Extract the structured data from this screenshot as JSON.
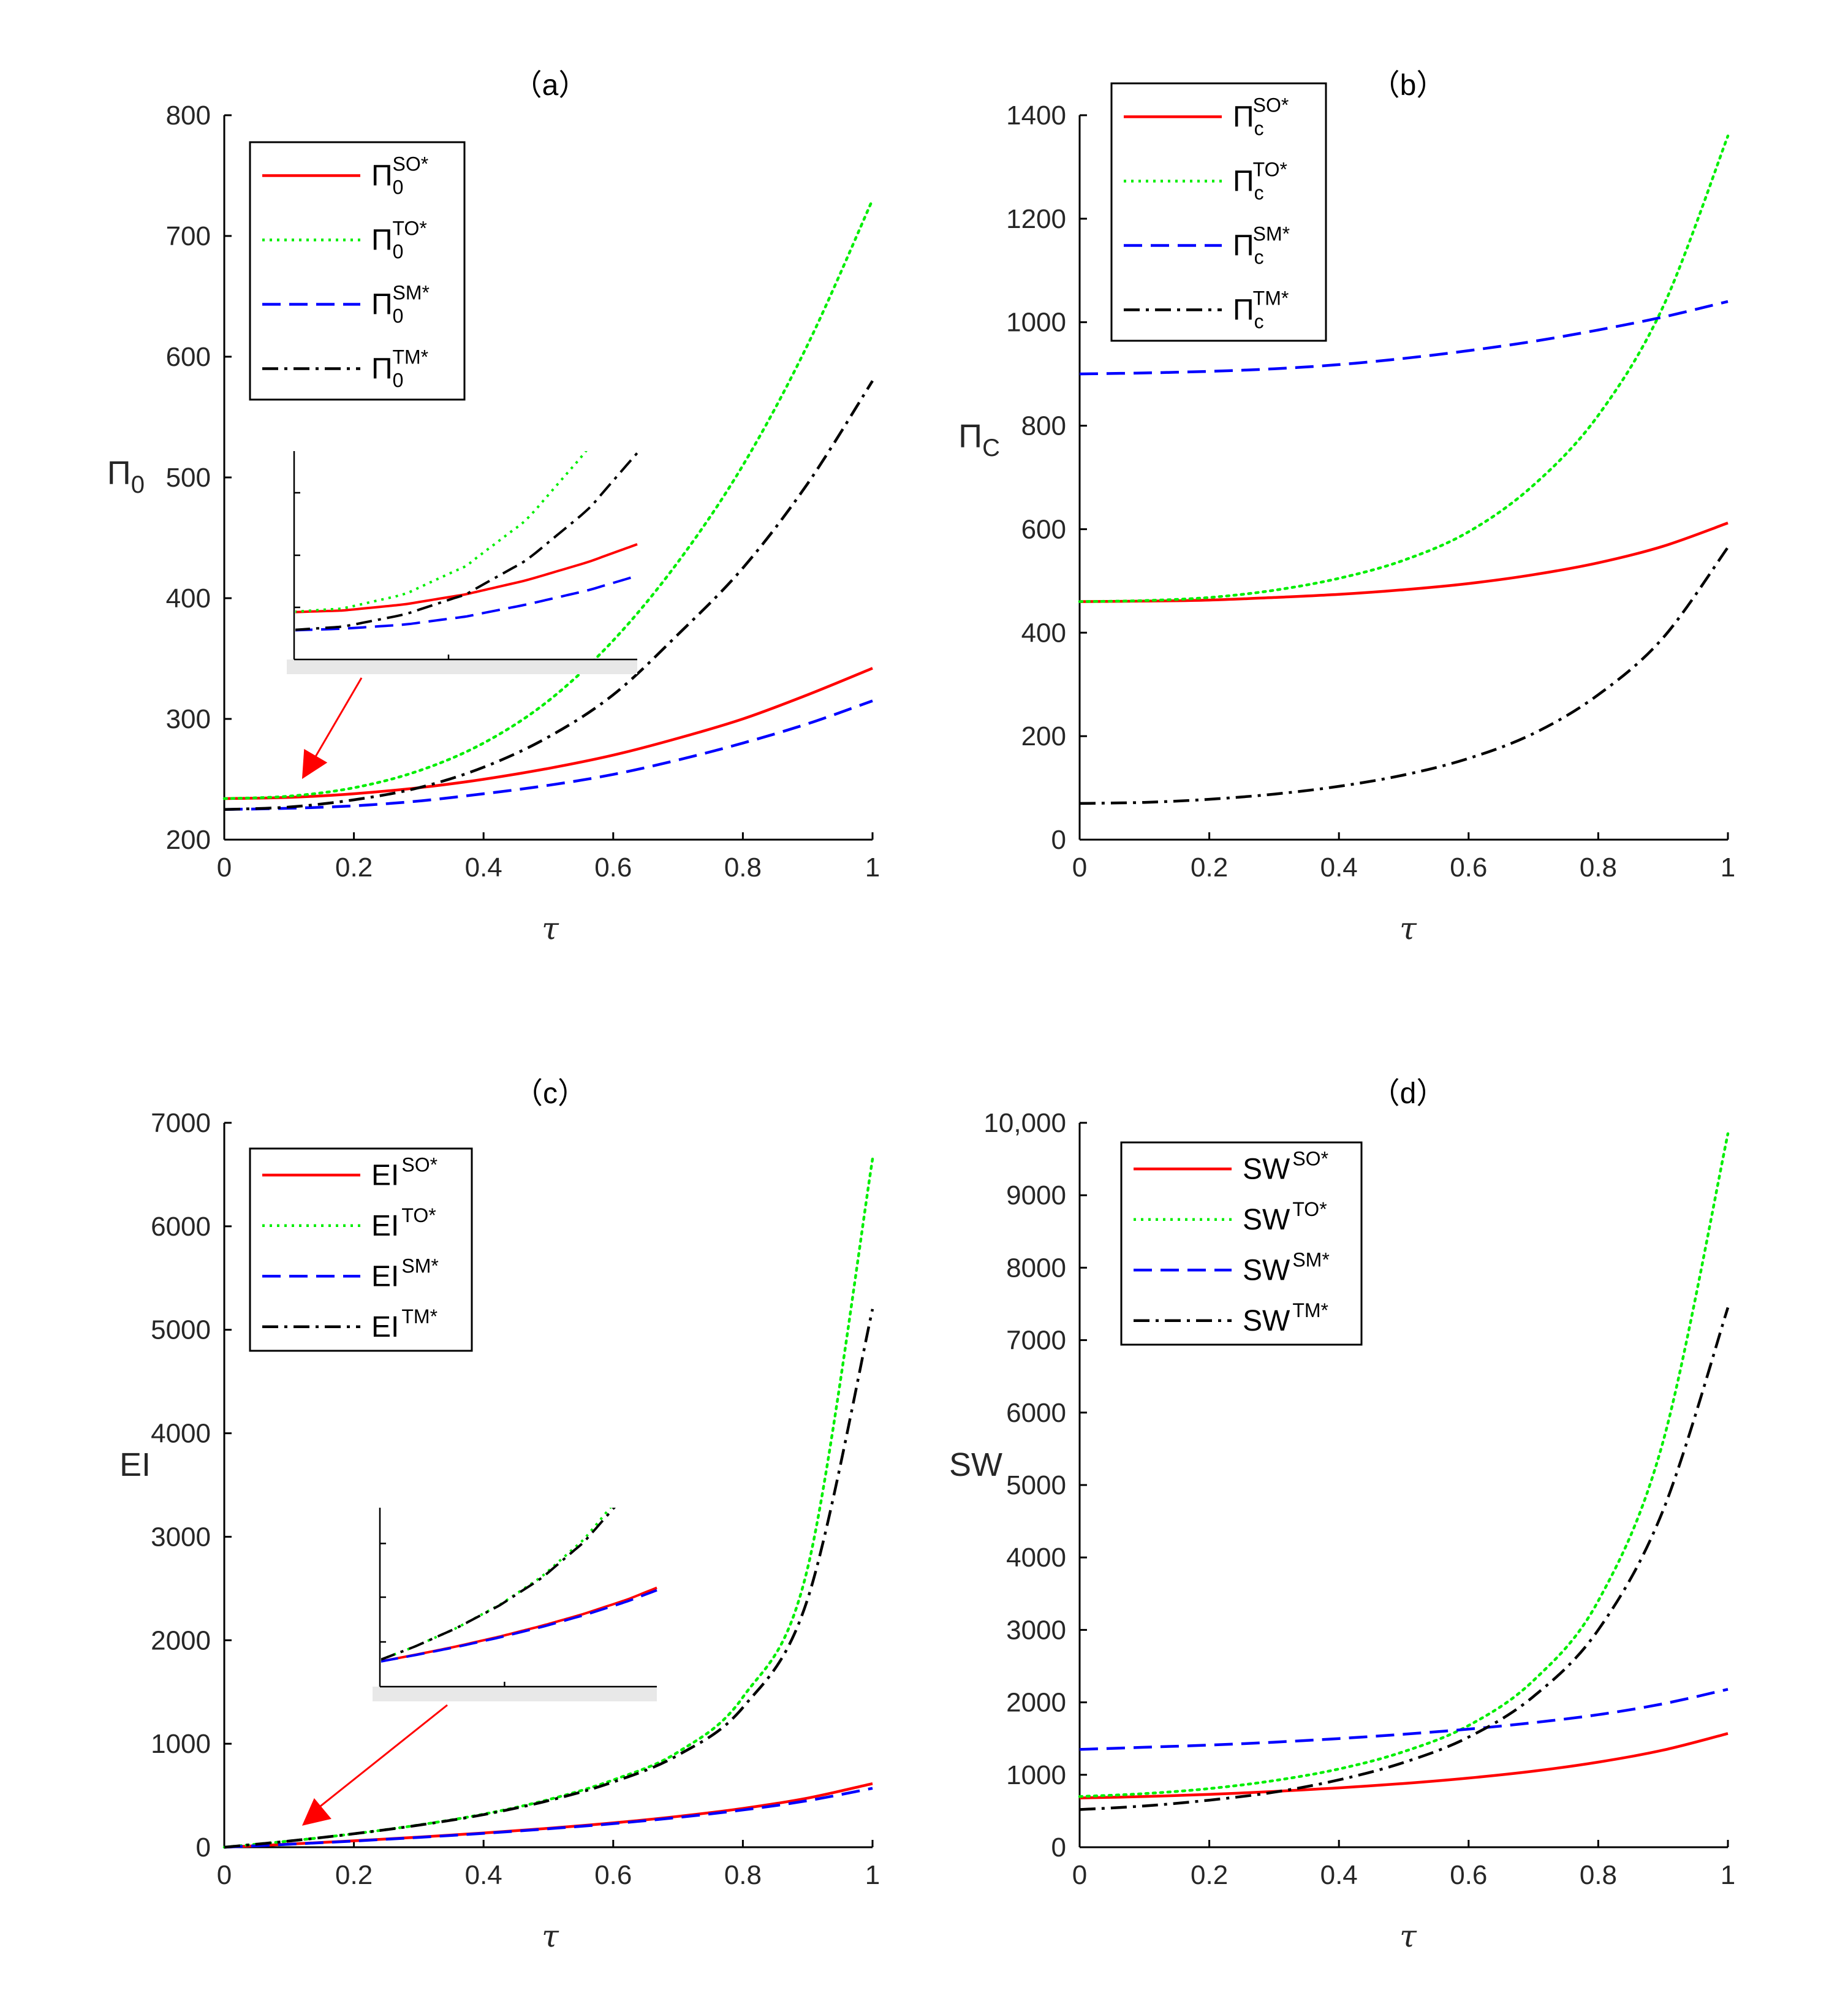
{
  "chart_data": [
    {
      "panel": "(a)",
      "title": "（a）",
      "type": "line",
      "xlabel": "τ",
      "ylabel": "Π",
      "ylabel_sub": "0",
      "xlim": [
        0,
        1
      ],
      "ylim": [
        200,
        800
      ],
      "xticks": [
        "0",
        "0.2",
        "0.4",
        "0.6",
        "0.8",
        "1"
      ],
      "yticks": [
        "200",
        "300",
        "400",
        "500",
        "600",
        "700",
        "800"
      ],
      "legend": "top-left",
      "x": [
        0,
        0.1,
        0.2,
        0.3,
        0.4,
        0.5,
        0.6,
        0.7,
        0.8,
        0.9,
        1.0
      ],
      "series": [
        {
          "name": "Π0SO*",
          "base": "Π",
          "sub": "0",
          "sup": "SO*",
          "color": "#ff0000",
          "style": "solid",
          "values": [
            234,
            235,
            238,
            243,
            250,
            259,
            270,
            284,
            300,
            320,
            342
          ]
        },
        {
          "name": "Π0TO*",
          "base": "Π",
          "sub": "0",
          "sup": "TO*",
          "color": "#00ee00",
          "style": "dotted",
          "values": [
            234,
            236,
            243,
            257,
            280,
            315,
            365,
            430,
            510,
            610,
            730
          ]
        },
        {
          "name": "Π0SM*",
          "base": "Π",
          "sub": "0",
          "sup": "SM*",
          "color": "#0000ff",
          "style": "dashed",
          "values": [
            225,
            226,
            228,
            232,
            238,
            245,
            254,
            266,
            280,
            296,
            315
          ]
        },
        {
          "name": "Π0TM*",
          "base": "Π",
          "sub": "0",
          "sup": "TM*",
          "color": "#000000",
          "style": "dashdot",
          "values": [
            225,
            227,
            233,
            243,
            260,
            285,
            320,
            370,
            425,
            495,
            580
          ]
        }
      ]
    },
    {
      "panel": "(b)",
      "title": "（b）",
      "type": "line",
      "xlabel": "τ",
      "ylabel": "Π",
      "ylabel_sub": "C",
      "xlim": [
        0,
        1
      ],
      "ylim": [
        0,
        1400
      ],
      "xticks": [
        "0",
        "0.2",
        "0.4",
        "0.6",
        "0.8",
        "1"
      ],
      "yticks": [
        "0",
        "200",
        "400",
        "600",
        "800",
        "1000",
        "1200",
        "1400"
      ],
      "legend": "top-left",
      "x": [
        0,
        0.1,
        0.2,
        0.3,
        0.4,
        0.5,
        0.6,
        0.7,
        0.8,
        0.9,
        1.0
      ],
      "series": [
        {
          "name": "ΠcSO*",
          "base": "Π",
          "sub": "c",
          "sup": "SO*",
          "color": "#ff0000",
          "style": "solid",
          "values": [
            460,
            461,
            463,
            468,
            474,
            483,
            495,
            512,
            535,
            567,
            612
          ]
        },
        {
          "name": "ΠcTO*",
          "base": "Π",
          "sub": "c",
          "sup": "TO*",
          "color": "#00ee00",
          "style": "dotted",
          "values": [
            460,
            462,
            468,
            482,
            505,
            540,
            595,
            685,
            820,
            1030,
            1360
          ]
        },
        {
          "name": "ΠcSM*",
          "base": "Π",
          "sub": "c",
          "sup": "SM*",
          "color": "#0000ff",
          "style": "dashed",
          "values": [
            900,
            902,
            905,
            910,
            918,
            930,
            945,
            963,
            985,
            1010,
            1040
          ]
        },
        {
          "name": "ΠcTM*",
          "base": "Π",
          "sub": "c",
          "sup": "TM*",
          "color": "#000000",
          "style": "dashdot",
          "values": [
            70,
            72,
            78,
            88,
            103,
            125,
            157,
            205,
            280,
            390,
            565
          ]
        }
      ]
    },
    {
      "panel": "(c)",
      "title": "（c）",
      "type": "line",
      "xlabel": "τ",
      "ylabel": "EI",
      "ylabel_sub": "",
      "xlim": [
        0,
        1
      ],
      "ylim": [
        0,
        7000
      ],
      "xticks": [
        "0",
        "0.2",
        "0.4",
        "0.6",
        "0.8",
        "1"
      ],
      "yticks": [
        "0",
        "1000",
        "2000",
        "3000",
        "4000",
        "5000",
        "6000",
        "7000"
      ],
      "legend": "top-left",
      "x": [
        0,
        0.1,
        0.2,
        0.3,
        0.4,
        0.5,
        0.6,
        0.7,
        0.8,
        0.9,
        1.0
      ],
      "series": [
        {
          "name": "EISO*",
          "base": "EI",
          "sub": "",
          "sup": "SO*",
          "color": "#ff0000",
          "style": "solid",
          "values": [
            0,
            30,
            62,
            98,
            138,
            183,
            235,
            298,
            375,
            475,
            615
          ]
        },
        {
          "name": "EITO*",
          "base": "EI",
          "sub": "",
          "sup": "TO*",
          "color": "#00ee00",
          "style": "dotted",
          "values": [
            0,
            60,
            130,
            215,
            320,
            460,
            650,
            920,
            1450,
            2700,
            6650
          ]
        },
        {
          "name": "EISM*",
          "base": "EI",
          "sub": "",
          "sup": "SM*",
          "color": "#0000ff",
          "style": "dashed",
          "values": [
            0,
            29,
            60,
            95,
            134,
            178,
            228,
            288,
            360,
            450,
            570
          ]
        },
        {
          "name": "EITM*",
          "base": "EI",
          "sub": "",
          "sup": "TM*",
          "color": "#000000",
          "style": "dashdot",
          "values": [
            0,
            60,
            130,
            213,
            315,
            450,
            630,
            890,
            1350,
            2400,
            5200
          ]
        }
      ]
    },
    {
      "panel": "(d)",
      "title": "（d）",
      "type": "line",
      "xlabel": "τ",
      "ylabel": "SW",
      "ylabel_sub": "",
      "xlim": [
        0,
        1
      ],
      "ylim": [
        0,
        10000
      ],
      "xticks": [
        "0",
        "0.2",
        "0.4",
        "0.6",
        "0.8",
        "1"
      ],
      "yticks": [
        "0",
        "1000",
        "2000",
        "3000",
        "4000",
        "5000",
        "6000",
        "7000",
        "8000",
        "9000",
        "10,000"
      ],
      "legend": "top-left",
      "x": [
        0,
        0.1,
        0.2,
        0.3,
        0.4,
        0.5,
        0.6,
        0.7,
        0.8,
        0.9,
        1.0
      ],
      "series": [
        {
          "name": "SWSO*",
          "base": "SW",
          "sub": "",
          "sup": "SO*",
          "color": "#ff0000",
          "style": "solid",
          "values": [
            680,
            700,
            730,
            770,
            820,
            880,
            955,
            1050,
            1175,
            1340,
            1570
          ]
        },
        {
          "name": "SWTO*",
          "base": "SW",
          "sub": "",
          "sup": "TO*",
          "color": "#00ee00",
          "style": "dotted",
          "values": [
            700,
            740,
            810,
            920,
            1080,
            1320,
            1680,
            2300,
            3400,
            5600,
            9850
          ]
        },
        {
          "name": "SWSM*",
          "base": "SW",
          "sub": "",
          "sup": "SM*",
          "color": "#0000ff",
          "style": "dashed",
          "values": [
            1350,
            1380,
            1410,
            1450,
            1500,
            1560,
            1630,
            1720,
            1830,
            1980,
            2180
          ]
        },
        {
          "name": "SWTM*",
          "base": "SW",
          "sub": "",
          "sup": "TM*",
          "color": "#000000",
          "style": "dashdot",
          "values": [
            520,
            570,
            650,
            760,
            930,
            1170,
            1520,
            2080,
            3000,
            4650,
            7450
          ]
        }
      ]
    }
  ]
}
